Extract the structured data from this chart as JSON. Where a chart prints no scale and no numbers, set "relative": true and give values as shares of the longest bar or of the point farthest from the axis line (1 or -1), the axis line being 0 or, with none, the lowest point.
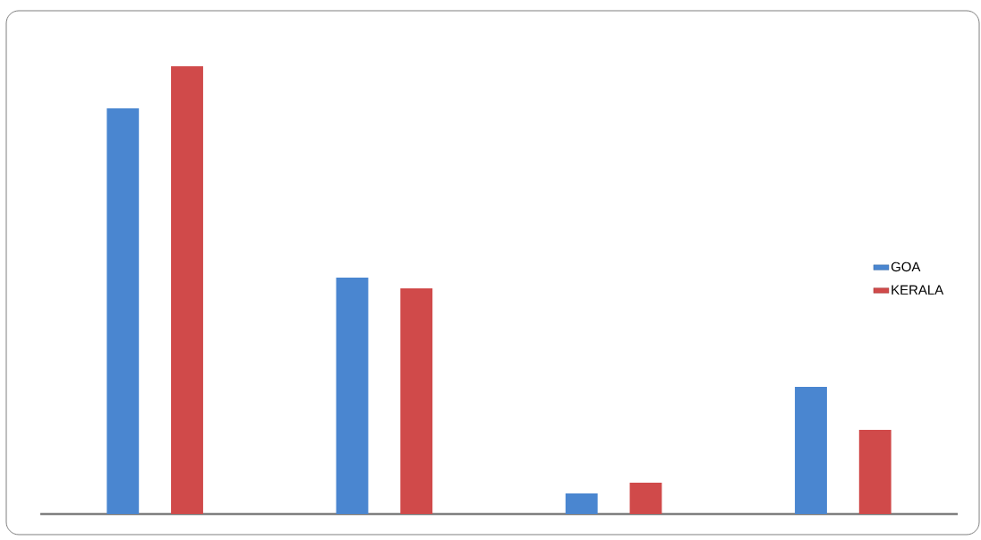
{
  "chart_data": {
    "type": "bar",
    "relative": true,
    "categories": [
      null,
      null,
      null,
      null
    ],
    "legend": "right",
    "series": [
      {
        "name": "GOA",
        "color": "#4a86d0",
        "values": [
          0.906,
          0.528,
          0.046,
          0.284
        ]
      },
      {
        "name": "KERALA",
        "color": "#d04a4a",
        "values": [
          1.0,
          0.504,
          0.07,
          0.188
        ]
      }
    ]
  }
}
